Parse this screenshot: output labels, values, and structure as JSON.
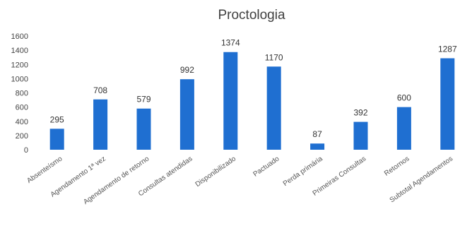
{
  "chart_data": {
    "type": "bar",
    "title": "Proctologia",
    "xlabel": "",
    "ylabel": "",
    "ylim": [
      0,
      1600
    ],
    "yticks": [
      0,
      200,
      400,
      600,
      800,
      1000,
      1200,
      1400,
      1600
    ],
    "grid": false,
    "legend": "none",
    "bar_color": "#1f6fd1",
    "categories": [
      "Absenteísmo",
      "Agendamento 1ª vez",
      "Agendamento de retorno",
      "Consultas atendidas",
      "Disponibilizado",
      "Pactuado",
      "Perda primária",
      "Primeiras Consultas",
      "Retornos",
      "Subtotal Agendamentos"
    ],
    "values": [
      295,
      708,
      579,
      992,
      1374,
      1170,
      87,
      392,
      600,
      1287
    ]
  }
}
